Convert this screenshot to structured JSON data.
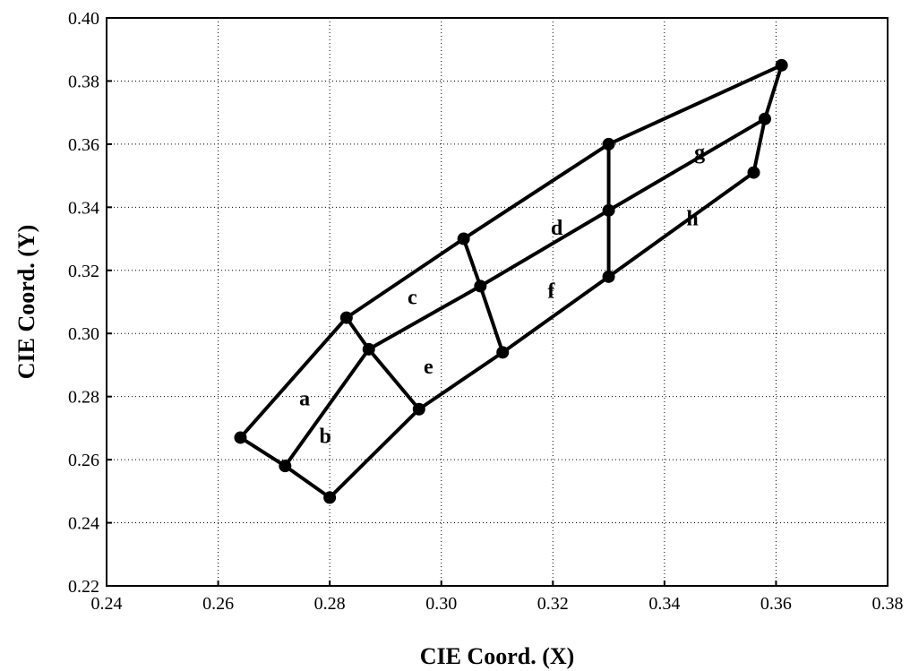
{
  "chart_data": {
    "type": "scatter",
    "title": "",
    "xlabel": "CIE Coord. (X)",
    "ylabel": "CIE Coord. (Y)",
    "xlim": [
      0.24,
      0.38
    ],
    "ylim": [
      0.22,
      0.4
    ],
    "xticks": [
      0.24,
      0.26,
      0.28,
      0.3,
      0.32,
      0.34,
      0.36,
      0.38
    ],
    "yticks": [
      0.22,
      0.24,
      0.26,
      0.28,
      0.3,
      0.32,
      0.34,
      0.36,
      0.38,
      0.4
    ],
    "xtick_labels": [
      "0.24",
      "0.26",
      "0.28",
      "0.30",
      "0.32",
      "0.34",
      "0.36",
      "0.38"
    ],
    "ytick_labels": [
      "0.22",
      "0.24",
      "0.26",
      "0.28",
      "0.30",
      "0.32",
      "0.34",
      "0.36",
      "0.38",
      "0.40"
    ],
    "grid": true,
    "points": [
      [
        0.264,
        0.267
      ],
      [
        0.272,
        0.258
      ],
      [
        0.28,
        0.248
      ],
      [
        0.283,
        0.305
      ],
      [
        0.287,
        0.295
      ],
      [
        0.296,
        0.276
      ],
      [
        0.304,
        0.33
      ],
      [
        0.307,
        0.315
      ],
      [
        0.311,
        0.294
      ],
      [
        0.33,
        0.36
      ],
      [
        0.33,
        0.339
      ],
      [
        0.33,
        0.318
      ],
      [
        0.356,
        0.351
      ],
      [
        0.358,
        0.368
      ],
      [
        0.361,
        0.385
      ]
    ],
    "edges": [
      [
        0,
        3
      ],
      [
        3,
        6
      ],
      [
        6,
        9
      ],
      [
        9,
        14
      ],
      [
        1,
        4
      ],
      [
        4,
        7
      ],
      [
        7,
        10
      ],
      [
        10,
        13
      ],
      [
        2,
        5
      ],
      [
        5,
        8
      ],
      [
        8,
        11
      ],
      [
        11,
        12
      ],
      [
        0,
        1
      ],
      [
        1,
        2
      ],
      [
        3,
        4
      ],
      [
        4,
        5
      ],
      [
        6,
        7
      ],
      [
        7,
        8
      ],
      [
        9,
        10
      ],
      [
        10,
        11
      ],
      [
        14,
        13
      ],
      [
        13,
        12
      ]
    ],
    "region_labels": [
      {
        "text": "a",
        "x": 0.2755,
        "y": 0.2795
      },
      {
        "text": "b",
        "x": 0.2792,
        "y": 0.2675
      },
      {
        "text": "c",
        "x": 0.2948,
        "y": 0.3115
      },
      {
        "text": "e",
        "x": 0.2977,
        "y": 0.2895
      },
      {
        "text": "d",
        "x": 0.3207,
        "y": 0.3335
      },
      {
        "text": "f",
        "x": 0.3197,
        "y": 0.3135
      },
      {
        "text": "g",
        "x": 0.3463,
        "y": 0.3575
      },
      {
        "text": "h",
        "x": 0.345,
        "y": 0.3365
      }
    ]
  }
}
